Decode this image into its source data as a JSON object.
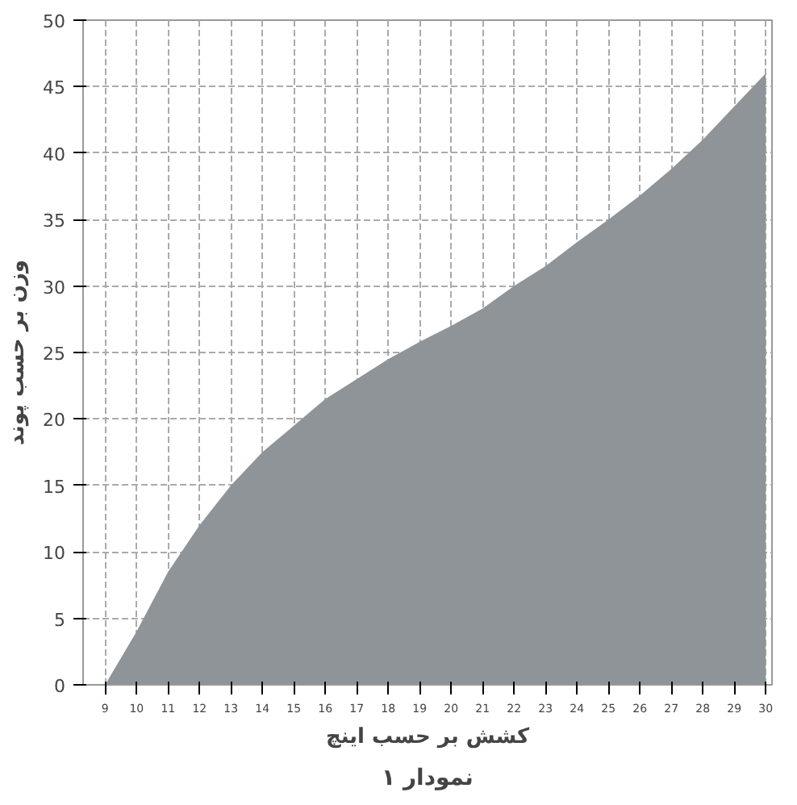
{
  "chart_data": {
    "type": "area",
    "xlabel": "کشش بر حسب اینچ",
    "ylabel": "وزن بر حسب پوند",
    "annotations": [
      "نمودار ۱"
    ],
    "x": [
      9,
      10,
      11,
      12,
      13,
      14,
      15,
      16,
      17,
      18,
      19,
      20,
      21,
      22,
      23,
      24,
      25,
      26,
      27,
      28,
      29,
      30
    ],
    "series": [
      {
        "color": "#8f9498",
        "values": [
          0,
          4,
          8.5,
          12,
          15,
          17.5,
          19.5,
          21.5,
          23,
          24.5,
          25.8,
          27,
          28.3,
          30,
          31.5,
          33.3,
          35,
          36.8,
          38.8,
          41,
          43.5,
          46
        ]
      }
    ],
    "xlim": [
      8.3,
      30.2
    ],
    "ylim": [
      0,
      50
    ],
    "xticks": [
      9,
      10,
      11,
      12,
      13,
      14,
      15,
      16,
      17,
      18,
      19,
      20,
      21,
      22,
      23,
      24,
      25,
      26,
      27,
      28,
      29,
      30
    ],
    "yticks": [
      0,
      5,
      10,
      15,
      20,
      25,
      30,
      35,
      40,
      45,
      50
    ],
    "grid": true
  }
}
